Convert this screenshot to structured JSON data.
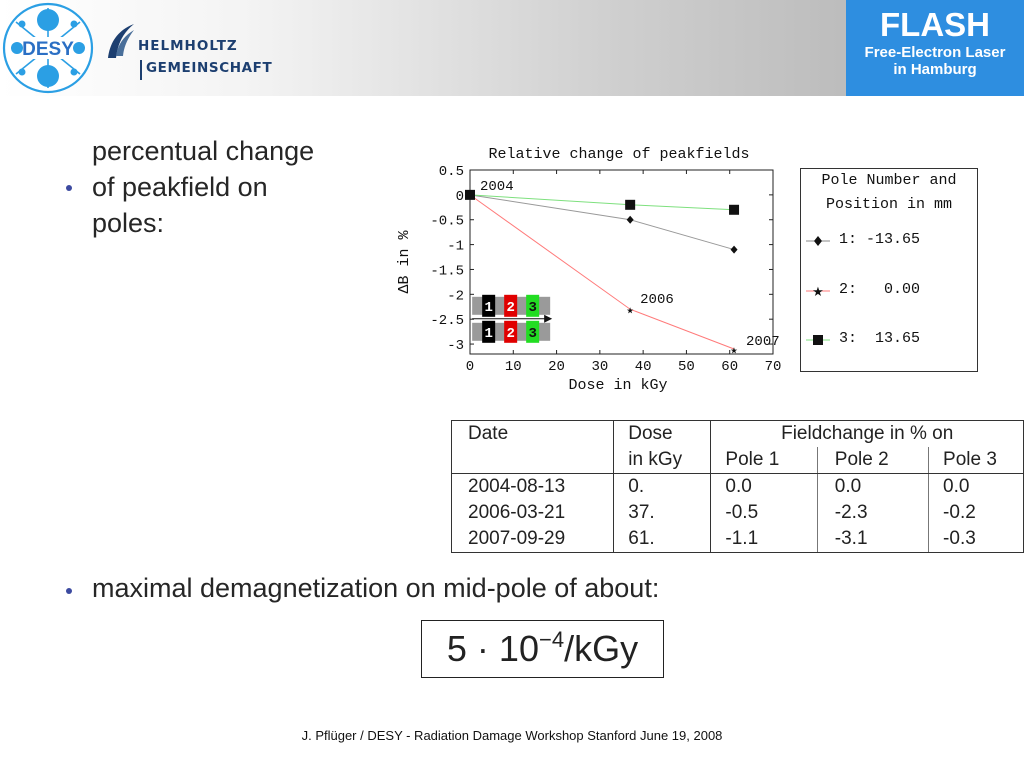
{
  "header": {
    "desy_logo_text": "DESY",
    "helmholtz_line1": "HELMHOLTZ",
    "helmholtz_line2": "GEMEINSCHAFT",
    "flash_title": "FLASH",
    "flash_subtitle_line1": "Free-Electron Laser",
    "flash_subtitle_line2": "in Hamburg",
    "flash_color": "#2e8ee0"
  },
  "bullet1": {
    "line1": "percentual change",
    "line2": "of peakfield on",
    "line3": "poles:"
  },
  "chart_data": {
    "type": "line",
    "title": "Relative change of peakfields",
    "xlabel": "Dose in kGy",
    "ylabel": "ΔB in %",
    "xlim": [
      0,
      70
    ],
    "ylim": [
      -3.2,
      0.5
    ],
    "x_ticks": [
      0,
      10,
      20,
      30,
      40,
      50,
      60,
      70
    ],
    "y_ticks": [
      0.5,
      0,
      -0.5,
      -1,
      -1.5,
      -2,
      -2.5,
      -3
    ],
    "x_tick_labels": [
      "0",
      "10",
      "20",
      "30",
      "40",
      "50",
      "60",
      "70"
    ],
    "y_tick_labels": [
      "0.5",
      "0",
      "-0.5",
      "-1",
      "-1.5",
      "-2",
      "-2.5",
      "-3"
    ],
    "series": [
      {
        "name": "1: -13.65",
        "x": [
          0,
          37,
          61
        ],
        "values": [
          0.0,
          -0.5,
          -1.1
        ],
        "color": "#999999",
        "marker": "diamond"
      },
      {
        "name": "2: 0.00",
        "x": [
          0,
          37,
          61
        ],
        "values": [
          0.0,
          -2.3,
          -3.1
        ],
        "color": "#ff7a7a",
        "marker": "star"
      },
      {
        "name": "3: 13.65",
        "x": [
          0,
          37,
          61
        ],
        "values": [
          0.0,
          -0.2,
          -0.3
        ],
        "color": "#7ee07e",
        "marker": "square"
      }
    ],
    "annotations": [
      "2004",
      "2006",
      "2007"
    ],
    "legend": {
      "title_line1": "Pole Number and",
      "title_line2": "Position in mm",
      "placement": "right",
      "entries": [
        "1: -13.65",
        "2:   0.00",
        "3:  13.65"
      ]
    },
    "inset_pole_labels": [
      "1",
      "2",
      "3"
    ],
    "inset_colors": [
      "#000000",
      "#e00000",
      "#22dd22"
    ]
  },
  "table": {
    "headers": {
      "date": "Date",
      "dose_line1": "Dose",
      "dose_line2": "in kGy",
      "fieldchange": "Fieldchange in % on",
      "pole1": "Pole 1",
      "pole2": "Pole 2",
      "pole3": "Pole 3"
    },
    "rows": [
      {
        "date": "2004-08-13",
        "dose": "0.",
        "pole1": "0.0",
        "pole2": "0.0",
        "pole3": "0.0"
      },
      {
        "date": "2006-03-21",
        "dose": "37.",
        "pole1": "-0.5",
        "pole2": "-2.3",
        "pole3": "-0.2"
      },
      {
        "date": "2007-09-29",
        "dose": "61.",
        "pole1": "-1.1",
        "pole2": "-3.1",
        "pole3": "-0.3"
      }
    ]
  },
  "bullet2": {
    "text": "maximal demagnetization on mid-pole of about:"
  },
  "formula": {
    "mantissa": "5 · 10",
    "exponent": "−4",
    "unit": "/kGy"
  },
  "footer": {
    "text": "J. Pflüger / DESY  - Radiation Damage Workshop Stanford June 19, 2008"
  }
}
